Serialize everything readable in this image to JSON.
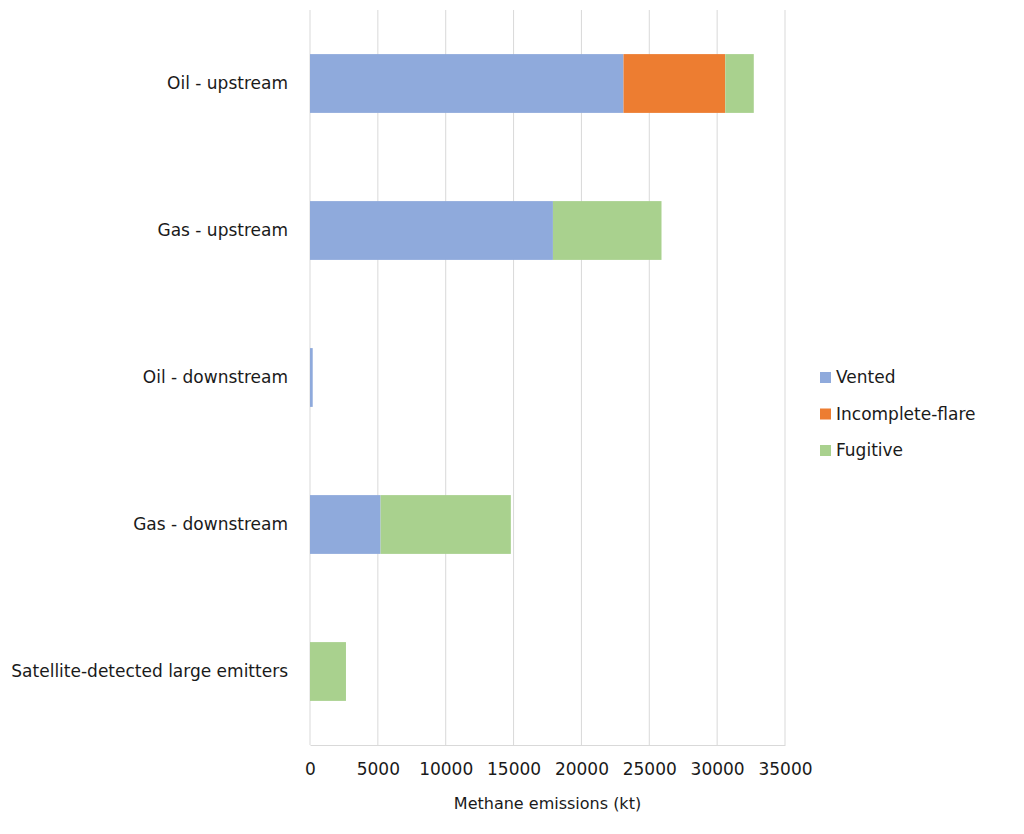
{
  "chart_data": {
    "type": "bar",
    "orientation": "horizontal",
    "stacked": true,
    "grid": true,
    "legend": "right",
    "x_label": "Methane emissions (kt)",
    "categories": [
      "Oil - upstream",
      "Gas - upstream",
      "Oil - downstream",
      "Gas - downstream",
      "Satellite-detected large emitters"
    ],
    "series": [
      {
        "name": "Vented",
        "color": "#8faadc",
        "values": [
          23100,
          17900,
          200,
          5200,
          0
        ]
      },
      {
        "name": "Incomplete-flare",
        "color": "#ed7d31",
        "values": [
          7500,
          0,
          0,
          0,
          0
        ]
      },
      {
        "name": "Fugitive",
        "color": "#a9d18e",
        "values": [
          2100,
          8000,
          0,
          9600,
          2650
        ]
      }
    ],
    "xlim": [
      0,
      35000
    ],
    "xticks": [
      0,
      5000,
      10000,
      15000,
      20000,
      25000,
      30000,
      35000
    ]
  }
}
